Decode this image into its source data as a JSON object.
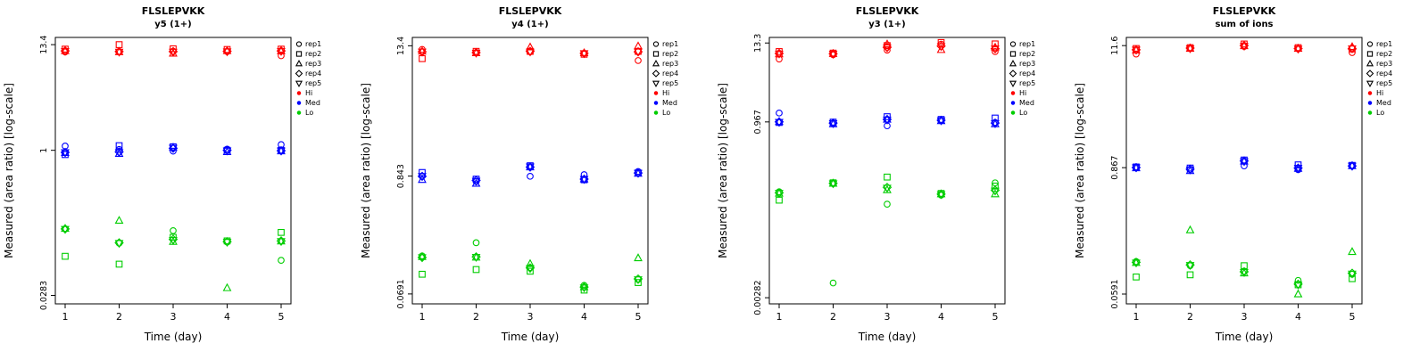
{
  "page": {
    "background": "#FFFFFF"
  },
  "legend": {
    "replicates": [
      {
        "label": "rep1",
        "marker": "circle"
      },
      {
        "label": "rep2",
        "marker": "square"
      },
      {
        "label": "rep3",
        "marker": "triangle-up"
      },
      {
        "label": "rep4",
        "marker": "diamond"
      },
      {
        "label": "rep5",
        "marker": "triangle-down"
      }
    ],
    "levels": [
      {
        "label": "Hi",
        "color": "#FF0000"
      },
      {
        "label": "Med",
        "color": "#0000FF"
      },
      {
        "label": "Lo",
        "color": "#00CD00"
      }
    ]
  },
  "chart_data": [
    {
      "type": "scatter",
      "title": "FLSLEPVKK",
      "subtitle": "y5 (1+)",
      "xlabel": "Time (day)",
      "ylabel": "Measured (area ratio) [log-scale]",
      "log_y": true,
      "x": [
        1,
        2,
        3,
        4,
        5
      ],
      "ylim": [
        0.023,
        16
      ],
      "yticks": [
        {
          "value": 13.4,
          "label": "13.4"
        },
        {
          "value": 1,
          "label": "1"
        },
        {
          "value": 0.0283,
          "label": "0.0283"
        }
      ],
      "series": [
        {
          "level": "Hi",
          "replicates": {
            "rep1": [
              11.2,
              11.3,
              11.4,
              11.3,
              10.2
            ],
            "rep2": [
              12.0,
              13.4,
              12.1,
              11.9,
              12.0
            ],
            "rep3": [
              11.5,
              11.2,
              10.8,
              11.5,
              11.4
            ],
            "rep4": [
              11.5,
              11.3,
              11.3,
              11.4,
              11.5
            ],
            "rep5": [
              11.4,
              11.2,
              11.2,
              11.3,
              11.4
            ]
          }
        },
        {
          "level": "Med",
          "replicates": {
            "rep1": [
              1.11,
              1.02,
              0.98,
              1.03,
              1.15
            ],
            "rep2": [
              0.9,
              1.12,
              1.09,
              1.0,
              1.0
            ],
            "rep3": [
              0.94,
              0.92,
              1.07,
              0.96,
              0.98
            ],
            "rep4": [
              0.95,
              0.96,
              1.05,
              1.0,
              0.99
            ],
            "rep5": [
              0.95,
              0.95,
              1.06,
              0.99,
              0.99
            ]
          }
        },
        {
          "level": "Lo",
          "replicates": {
            "rep1": [
              0.145,
              0.102,
              0.139,
              0.105,
              0.067
            ],
            "rep2": [
              0.074,
              0.061,
              0.118,
              0.108,
              0.133
            ],
            "rep3": [
              0.146,
              0.178,
              0.106,
              0.034,
              0.107
            ],
            "rep4": [
              0.145,
              0.103,
              0.112,
              0.106,
              0.108
            ],
            "rep5": [
              0.144,
              0.102,
              0.11,
              0.105,
              0.107
            ]
          }
        }
      ]
    },
    {
      "type": "scatter",
      "title": "FLSLEPVKK",
      "subtitle": "y4 (1+)",
      "xlabel": "Time (day)",
      "ylabel": "Measured (area ratio) [log-scale]",
      "log_y": true,
      "x": [
        1,
        2,
        3,
        4,
        5
      ],
      "ylim": [
        0.056,
        16
      ],
      "yticks": [
        {
          "value": 13.4,
          "label": "13.4"
        },
        {
          "value": 0.843,
          "label": "0.843"
        },
        {
          "value": 0.0691,
          "label": "0.0691"
        }
      ],
      "series": [
        {
          "level": "Hi",
          "replicates": {
            "rep1": [
              12.4,
              11.6,
              11.8,
              11.4,
              9.8
            ],
            "rep2": [
              10.2,
              11.9,
              11.9,
              11.2,
              11.9
            ],
            "rep3": [
              11.9,
              11.5,
              13.0,
              11.5,
              13.3
            ],
            "rep4": [
              11.8,
              11.6,
              11.9,
              11.4,
              11.8
            ],
            "rep5": [
              11.8,
              11.5,
              11.8,
              11.4,
              11.8
            ]
          }
        },
        {
          "level": "Med",
          "replicates": {
            "rep1": [
              0.84,
              0.75,
              0.84,
              0.87,
              0.93
            ],
            "rep2": [
              0.91,
              0.79,
              1.05,
              0.78,
              0.9
            ],
            "rep3": [
              0.78,
              0.72,
              1.02,
              0.79,
              0.89
            ],
            "rep4": [
              0.84,
              0.77,
              1.02,
              0.79,
              0.9
            ],
            "rep5": [
              0.84,
              0.76,
              1.03,
              0.79,
              0.9
            ]
          }
        },
        {
          "level": "Lo",
          "replicates": {
            "rep1": [
              0.155,
              0.205,
              0.121,
              0.083,
              0.094
            ],
            "rep2": [
              0.105,
              0.116,
              0.112,
              0.075,
              0.088
            ],
            "rep3": [
              0.152,
              0.15,
              0.131,
              0.08,
              0.148
            ],
            "rep4": [
              0.15,
              0.152,
              0.12,
              0.08,
              0.095
            ],
            "rep5": [
              0.15,
              0.151,
              0.119,
              0.079,
              0.094
            ]
          }
        }
      ]
    },
    {
      "type": "scatter",
      "title": "FLSLEPVKK",
      "subtitle": "y3 (1+)",
      "xlabel": "Time (day)",
      "ylabel": "Measured (area ratio) [log-scale]",
      "log_y": true,
      "x": [
        1,
        2,
        3,
        4,
        5
      ],
      "ylim": [
        0.0023,
        16
      ],
      "yticks": [
        {
          "value": 13.3,
          "label": "13.3"
        },
        {
          "value": 0.967,
          "label": "0.967"
        },
        {
          "value": 0.00282,
          "label": "0.00282"
        }
      ],
      "series": [
        {
          "level": "Hi",
          "replicates": {
            "rep1": [
              7.8,
              9.0,
              10.5,
              12.8,
              10.0
            ],
            "rep2": [
              10.0,
              9.5,
              12.2,
              13.5,
              12.9
            ],
            "rep3": [
              9.2,
              9.3,
              12.8,
              10.6,
              11.5
            ],
            "rep4": [
              9.4,
              9.3,
              11.5,
              12.0,
              11.0
            ],
            "rep5": [
              9.3,
              9.2,
              11.4,
              11.9,
              11.0
            ]
          }
        },
        {
          "level": "Med",
          "replicates": {
            "rep1": [
              1.3,
              0.92,
              0.85,
              1.02,
              0.95
            ],
            "rep2": [
              0.95,
              0.96,
              1.15,
              1.05,
              1.1
            ],
            "rep3": [
              0.97,
              0.9,
              1.05,
              1.0,
              0.9
            ],
            "rep4": [
              0.97,
              0.93,
              1.05,
              1.02,
              0.93
            ],
            "rep5": [
              0.96,
              0.92,
              1.04,
              1.01,
              0.92
            ]
          }
        },
        {
          "level": "Lo",
          "replicates": {
            "rep1": [
              0.095,
              0.0046,
              0.063,
              0.085,
              0.128
            ],
            "rep2": [
              0.072,
              0.128,
              0.155,
              0.09,
              0.115
            ],
            "rep3": [
              0.09,
              0.125,
              0.101,
              0.088,
              0.088
            ],
            "rep4": [
              0.092,
              0.126,
              0.11,
              0.088,
              0.1
            ],
            "rep5": [
              0.091,
              0.125,
              0.108,
              0.087,
              0.098
            ]
          }
        }
      ]
    },
    {
      "type": "scatter",
      "title": "FLSLEPVKK",
      "subtitle": "sum of ions",
      "xlabel": "Time (day)",
      "ylabel": "Measured (area ratio) [log-scale]",
      "log_y": true,
      "x": [
        1,
        2,
        3,
        4,
        5
      ],
      "ylim": [
        0.048,
        13.8
      ],
      "yticks": [
        {
          "value": 11.6,
          "label": "11.6"
        },
        {
          "value": 0.867,
          "label": "0.867"
        },
        {
          "value": 0.0591,
          "label": "0.0591"
        }
      ],
      "series": [
        {
          "level": "Hi",
          "replicates": {
            "rep1": [
              9.7,
              10.9,
              11.4,
              10.8,
              10.0
            ],
            "rep2": [
              10.9,
              11.1,
              12.0,
              11.1,
              10.8
            ],
            "rep3": [
              10.5,
              10.9,
              11.5,
              10.9,
              11.3
            ],
            "rep4": [
              10.6,
              11.0,
              11.6,
              10.9,
              10.9
            ],
            "rep5": [
              10.6,
              10.9,
              11.5,
              10.8,
              10.9
            ]
          }
        },
        {
          "level": "Med",
          "replicates": {
            "rep1": [
              0.87,
              0.83,
              0.9,
              0.83,
              0.9
            ],
            "rep2": [
              0.88,
              0.86,
              1.02,
              0.92,
              0.91
            ],
            "rep3": [
              0.86,
              0.81,
              0.99,
              0.85,
              0.9
            ],
            "rep4": [
              0.87,
              0.84,
              1.0,
              0.86,
              0.9
            ],
            "rep5": [
              0.87,
              0.83,
              0.99,
              0.86,
              0.9
            ]
          }
        },
        {
          "level": "Lo",
          "replicates": {
            "rep1": [
              0.118,
              0.108,
              0.096,
              0.079,
              0.09
            ],
            "rep2": [
              0.085,
              0.089,
              0.108,
              0.072,
              0.082
            ],
            "rep3": [
              0.115,
              0.23,
              0.092,
              0.059,
              0.145
            ],
            "rep4": [
              0.116,
              0.11,
              0.095,
              0.073,
              0.092
            ],
            "rep5": [
              0.115,
              0.109,
              0.094,
              0.072,
              0.091
            ]
          }
        }
      ]
    }
  ]
}
